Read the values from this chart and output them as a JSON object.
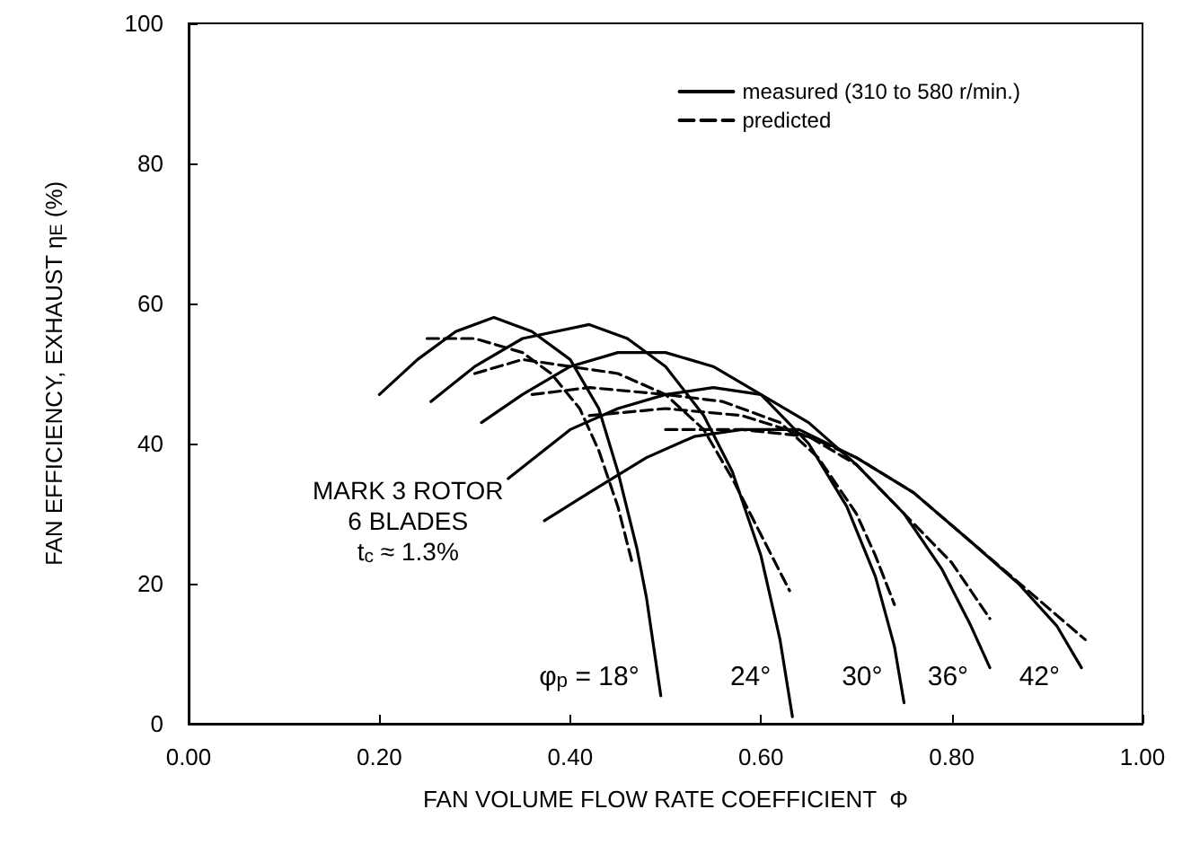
{
  "chart_data": {
    "type": "line",
    "xlabel": "FAN VOLUME FLOW RATE COEFFICIENT  Φ",
    "ylabel": "FAN EFFICIENCY, EXHAUST η$_{E}$ (%)",
    "xlim": [
      0,
      1
    ],
    "ylim": [
      0,
      100
    ],
    "xticks": [
      {
        "value": 0,
        "label": "0.00"
      },
      {
        "value": 0.2,
        "label": "0.20"
      },
      {
        "value": 0.4,
        "label": "0.40"
      },
      {
        "value": 0.6,
        "label": "0.60"
      },
      {
        "value": 0.8,
        "label": "0.80"
      },
      {
        "value": 1,
        "label": "1.00"
      }
    ],
    "yticks": [
      0,
      20,
      40,
      60,
      80,
      100
    ],
    "grid": false,
    "legend": "top right",
    "marker": "none",
    "series": [
      {
        "name": "measured (310 to 580 r/min.)",
        "color": "#000000",
        "line_style": "solid",
        "x": [
          0.2,
          0.24,
          0.28,
          0.32,
          0.36,
          0.4,
          0.43,
          0.45,
          0.47,
          0.48,
          0.495
        ],
        "values": [
          47,
          52,
          56,
          58,
          56,
          52,
          45,
          36,
          25,
          18,
          4
        ]
      },
      {
        "name": "predicted",
        "color": "#000000",
        "line_style": "dashed",
        "x": [
          0.25,
          0.3,
          0.35,
          0.38,
          0.41,
          0.43,
          0.45,
          0.465
        ],
        "values": [
          55,
          55,
          53,
          50,
          45,
          39,
          31,
          23
        ]
      },
      {
        "color": "#000000",
        "line_style": "solid",
        "x": [
          0.254,
          0.3,
          0.35,
          0.42,
          0.46,
          0.5,
          0.54,
          0.57,
          0.6,
          0.62,
          0.633
        ],
        "values": [
          46,
          51,
          55,
          57,
          55,
          51,
          44,
          36,
          24,
          12,
          1
        ]
      },
      {
        "color": "#000000",
        "line_style": "dashed",
        "x": [
          0.3,
          0.35,
          0.4,
          0.45,
          0.5,
          0.54,
          0.57,
          0.6,
          0.63
        ],
        "values": [
          50,
          52,
          51,
          50,
          47,
          42,
          35,
          27,
          19
        ]
      },
      {
        "color": "#000000",
        "line_style": "solid",
        "x": [
          0.307,
          0.35,
          0.4,
          0.45,
          0.5,
          0.55,
          0.6,
          0.65,
          0.69,
          0.72,
          0.74,
          0.75
        ],
        "values": [
          43,
          47,
          51,
          53,
          53,
          51,
          47,
          40,
          31,
          21,
          11,
          3
        ]
      },
      {
        "color": "#000000",
        "line_style": "dashed",
        "x": [
          0.36,
          0.42,
          0.5,
          0.56,
          0.62,
          0.66,
          0.7,
          0.72,
          0.74
        ],
        "values": [
          47,
          48,
          47,
          46,
          43,
          38,
          30,
          24,
          17
        ]
      },
      {
        "color": "#000000",
        "line_style": "solid",
        "x": [
          0.335,
          0.4,
          0.45,
          0.5,
          0.55,
          0.6,
          0.65,
          0.7,
          0.75,
          0.79,
          0.82,
          0.84
        ],
        "values": [
          35,
          42,
          45,
          47,
          48,
          47,
          43,
          37,
          30,
          22,
          14,
          8
        ]
      },
      {
        "color": "#000000",
        "line_style": "dashed",
        "x": [
          0.42,
          0.5,
          0.58,
          0.65,
          0.7,
          0.75,
          0.8,
          0.84
        ],
        "values": [
          44,
          45,
          44,
          41,
          37,
          30,
          23,
          15
        ]
      },
      {
        "color": "#000000",
        "line_style": "solid",
        "x": [
          0.373,
          0.42,
          0.48,
          0.53,
          0.58,
          0.64,
          0.7,
          0.76,
          0.82,
          0.87,
          0.91,
          0.936
        ],
        "values": [
          29,
          33,
          38,
          41,
          42,
          42,
          38,
          33,
          26,
          20,
          14,
          8
        ]
      },
      {
        "color": "#000000",
        "line_style": "dashed",
        "x": [
          0.5,
          0.58,
          0.65,
          0.7,
          0.76,
          0.82,
          0.88,
          0.94
        ],
        "values": [
          42,
          42,
          41,
          38,
          33,
          26,
          19,
          12
        ]
      }
    ],
    "annotations": [
      "MARK 3 ROTOR\n6 BLADES\nt$_{c}$ ≈ 1.3%",
      "φ$_{p}$ = 18°",
      "24°",
      "30°",
      "36°",
      "42°"
    ]
  }
}
